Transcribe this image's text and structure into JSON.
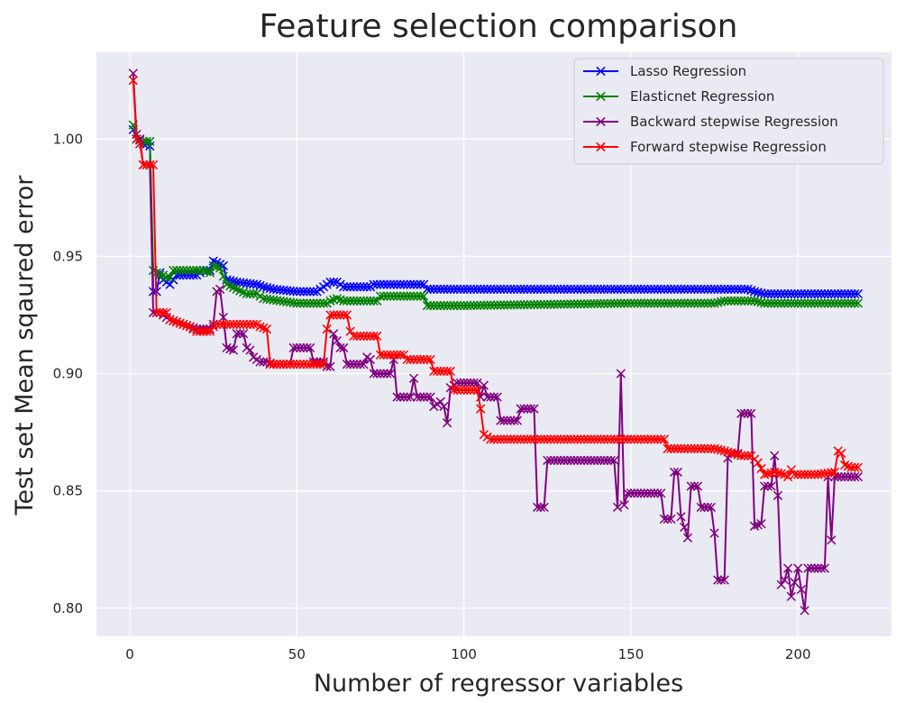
{
  "chart_data": {
    "type": "line",
    "title": "Feature selection comparison",
    "xlabel": "Number of regressor variables",
    "ylabel": "Test set Mean sqaured error",
    "xlim": [
      -10,
      228
    ],
    "ylim": [
      0.788,
      1.037
    ],
    "x_ticks": [
      "0",
      "50",
      "100",
      "150",
      "200"
    ],
    "y_ticks": [
      "0.80",
      "0.85",
      "0.90",
      "0.95",
      "1.00"
    ],
    "grid": true,
    "legend_position": "top-right",
    "marker": "x",
    "series": [
      {
        "name": "Lasso Regression",
        "color": "#0000ff",
        "points": [
          [
            1,
            1.004
          ],
          [
            2,
            1.0
          ],
          [
            3,
            0.998
          ],
          [
            5,
            0.998
          ],
          [
            6,
            0.997
          ],
          [
            7,
            0.935
          ],
          [
            8,
            0.935
          ],
          [
            9,
            0.943
          ],
          [
            10,
            0.94
          ],
          [
            12,
            0.938
          ],
          [
            14,
            0.942
          ],
          [
            20,
            0.942
          ],
          [
            22,
            0.944
          ],
          [
            24,
            0.944
          ],
          [
            25,
            0.948
          ],
          [
            28,
            0.946
          ],
          [
            29,
            0.94
          ],
          [
            32,
            0.939
          ],
          [
            38,
            0.938
          ],
          [
            40,
            0.937
          ],
          [
            43,
            0.936
          ],
          [
            50,
            0.935
          ],
          [
            56,
            0.935
          ],
          [
            57,
            0.936
          ],
          [
            60,
            0.939
          ],
          [
            62,
            0.939
          ],
          [
            64,
            0.937
          ],
          [
            72,
            0.937
          ],
          [
            73,
            0.938
          ],
          [
            85,
            0.938
          ],
          [
            88,
            0.938
          ],
          [
            89,
            0.936
          ],
          [
            100,
            0.936
          ],
          [
            150,
            0.936
          ],
          [
            185,
            0.936
          ],
          [
            187,
            0.935
          ],
          [
            190,
            0.934
          ],
          [
            218,
            0.934
          ]
        ]
      },
      {
        "name": "Elasticnet Regression",
        "color": "#008000",
        "points": [
          [
            1,
            1.006
          ],
          [
            2,
            1.0
          ],
          [
            4,
            0.999
          ],
          [
            5,
            0.999
          ],
          [
            6,
            0.999
          ],
          [
            7,
            0.944
          ],
          [
            9,
            0.942
          ],
          [
            10,
            0.942
          ],
          [
            11,
            0.941
          ],
          [
            12,
            0.941
          ],
          [
            13,
            0.944
          ],
          [
            22,
            0.944
          ],
          [
            24,
            0.943
          ],
          [
            25,
            0.946
          ],
          [
            27,
            0.945
          ],
          [
            29,
            0.938
          ],
          [
            32,
            0.936
          ],
          [
            35,
            0.934
          ],
          [
            38,
            0.934
          ],
          [
            40,
            0.932
          ],
          [
            45,
            0.931
          ],
          [
            50,
            0.93
          ],
          [
            59,
            0.93
          ],
          [
            60,
            0.931
          ],
          [
            62,
            0.932
          ],
          [
            64,
            0.931
          ],
          [
            74,
            0.931
          ],
          [
            75,
            0.933
          ],
          [
            86,
            0.933
          ],
          [
            88,
            0.933
          ],
          [
            89,
            0.929
          ],
          [
            100,
            0.929
          ],
          [
            150,
            0.93
          ],
          [
            175,
            0.93
          ],
          [
            178,
            0.931
          ],
          [
            187,
            0.931
          ],
          [
            190,
            0.93
          ],
          [
            218,
            0.93
          ]
        ]
      },
      {
        "name": "Backward stepwise Regression",
        "color": "#800080",
        "points": [
          [
            1,
            1.028
          ],
          [
            2,
            1.002
          ],
          [
            3,
            1.0
          ],
          [
            4,
            0.989
          ],
          [
            6,
            0.989
          ],
          [
            7,
            0.926
          ],
          [
            9,
            0.926
          ],
          [
            10,
            0.925
          ],
          [
            12,
            0.923
          ],
          [
            14,
            0.922
          ],
          [
            16,
            0.921
          ],
          [
            18,
            0.92
          ],
          [
            20,
            0.919
          ],
          [
            24,
            0.919
          ],
          [
            25,
            0.921
          ],
          [
            26,
            0.935
          ],
          [
            27,
            0.936
          ],
          [
            28,
            0.924
          ],
          [
            29,
            0.911
          ],
          [
            31,
            0.91
          ],
          [
            32,
            0.917
          ],
          [
            34,
            0.917
          ],
          [
            35,
            0.911
          ],
          [
            36,
            0.91
          ],
          [
            37,
            0.907
          ],
          [
            39,
            0.905
          ],
          [
            41,
            0.905
          ],
          [
            43,
            0.904
          ],
          [
            46,
            0.904
          ],
          [
            48,
            0.904
          ],
          [
            49,
            0.911
          ],
          [
            54,
            0.911
          ],
          [
            55,
            0.905
          ],
          [
            58,
            0.905
          ],
          [
            59,
            0.903
          ],
          [
            60,
            0.903
          ],
          [
            61,
            0.917
          ],
          [
            62,
            0.914
          ],
          [
            63,
            0.911
          ],
          [
            64,
            0.911
          ],
          [
            65,
            0.904
          ],
          [
            70,
            0.904
          ],
          [
            71,
            0.907
          ],
          [
            72,
            0.906
          ],
          [
            73,
            0.9
          ],
          [
            78,
            0.9
          ],
          [
            79,
            0.906
          ],
          [
            80,
            0.89
          ],
          [
            84,
            0.89
          ],
          [
            85,
            0.898
          ],
          [
            86,
            0.89
          ],
          [
            90,
            0.89
          ],
          [
            91,
            0.886
          ],
          [
            93,
            0.888
          ],
          [
            94,
            0.886
          ],
          [
            95,
            0.879
          ],
          [
            96,
            0.894
          ],
          [
            98,
            0.896
          ],
          [
            104,
            0.896
          ],
          [
            105,
            0.89
          ],
          [
            106,
            0.895
          ],
          [
            107,
            0.89
          ],
          [
            110,
            0.89
          ],
          [
            111,
            0.88
          ],
          [
            116,
            0.88
          ],
          [
            117,
            0.885
          ],
          [
            121,
            0.885
          ],
          [
            122,
            0.843
          ],
          [
            124,
            0.843
          ],
          [
            125,
            0.863
          ],
          [
            145,
            0.863
          ],
          [
            146,
            0.843
          ],
          [
            147,
            0.9
          ],
          [
            148,
            0.844
          ],
          [
            149,
            0.849
          ],
          [
            159,
            0.849
          ],
          [
            160,
            0.838
          ],
          [
            162,
            0.838
          ],
          [
            163,
            0.858
          ],
          [
            164,
            0.858
          ],
          [
            165,
            0.839
          ],
          [
            167,
            0.83
          ],
          [
            168,
            0.852
          ],
          [
            170,
            0.852
          ],
          [
            171,
            0.843
          ],
          [
            174,
            0.843
          ],
          [
            175,
            0.832
          ],
          [
            176,
            0.812
          ],
          [
            178,
            0.812
          ],
          [
            179,
            0.864
          ],
          [
            180,
            0.866
          ],
          [
            182,
            0.866
          ],
          [
            183,
            0.883
          ],
          [
            186,
            0.883
          ],
          [
            187,
            0.835
          ],
          [
            189,
            0.836
          ],
          [
            190,
            0.852
          ],
          [
            192,
            0.852
          ],
          [
            193,
            0.865
          ],
          [
            194,
            0.848
          ],
          [
            195,
            0.81
          ],
          [
            196,
            0.812
          ],
          [
            197,
            0.817
          ],
          [
            198,
            0.805
          ],
          [
            200,
            0.817
          ],
          [
            201,
            0.808
          ],
          [
            202,
            0.799
          ],
          [
            203,
            0.817
          ],
          [
            208,
            0.817
          ],
          [
            209,
            0.856
          ],
          [
            210,
            0.829
          ],
          [
            211,
            0.856
          ],
          [
            218,
            0.856
          ]
        ]
      },
      {
        "name": "Forward stepwise Regression",
        "color": "#ff0000",
        "points": [
          [
            1,
            1.025
          ],
          [
            2,
            1.0
          ],
          [
            3,
            0.998
          ],
          [
            4,
            0.989
          ],
          [
            6,
            0.989
          ],
          [
            7,
            0.989
          ],
          [
            8,
            0.926
          ],
          [
            11,
            0.926
          ],
          [
            12,
            0.923
          ],
          [
            14,
            0.922
          ],
          [
            16,
            0.921
          ],
          [
            18,
            0.92
          ],
          [
            20,
            0.918
          ],
          [
            24,
            0.918
          ],
          [
            25,
            0.92
          ],
          [
            26,
            0.921
          ],
          [
            38,
            0.921
          ],
          [
            39,
            0.92
          ],
          [
            41,
            0.919
          ],
          [
            42,
            0.904
          ],
          [
            57,
            0.904
          ],
          [
            58,
            0.904
          ],
          [
            59,
            0.919
          ],
          [
            60,
            0.925
          ],
          [
            65,
            0.925
          ],
          [
            66,
            0.918
          ],
          [
            67,
            0.916
          ],
          [
            74,
            0.916
          ],
          [
            75,
            0.908
          ],
          [
            82,
            0.908
          ],
          [
            83,
            0.906
          ],
          [
            90,
            0.906
          ],
          [
            91,
            0.901
          ],
          [
            96,
            0.901
          ],
          [
            97,
            0.893
          ],
          [
            104,
            0.893
          ],
          [
            105,
            0.885
          ],
          [
            106,
            0.874
          ],
          [
            107,
            0.873
          ],
          [
            108,
            0.872
          ],
          [
            160,
            0.872
          ],
          [
            161,
            0.868
          ],
          [
            175,
            0.868
          ],
          [
            178,
            0.867
          ],
          [
            183,
            0.865
          ],
          [
            186,
            0.865
          ],
          [
            188,
            0.862
          ],
          [
            190,
            0.857
          ],
          [
            193,
            0.858
          ],
          [
            196,
            0.857
          ],
          [
            197,
            0.856
          ],
          [
            198,
            0.859
          ],
          [
            199,
            0.857
          ],
          [
            206,
            0.857
          ],
          [
            211,
            0.858
          ],
          [
            212,
            0.867
          ],
          [
            213,
            0.866
          ],
          [
            214,
            0.861
          ],
          [
            216,
            0.86
          ],
          [
            218,
            0.86
          ]
        ]
      }
    ]
  }
}
